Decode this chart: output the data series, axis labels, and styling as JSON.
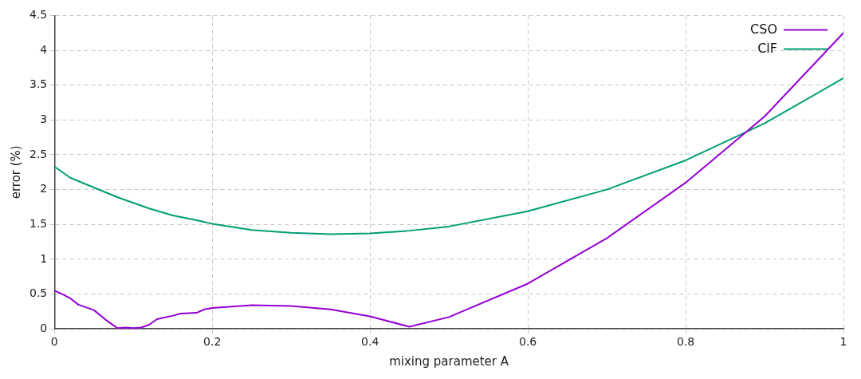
{
  "chart_data": {
    "type": "line",
    "xlabel": "mixing parameter A",
    "ylabel": "error (%)",
    "xlim": [
      0,
      1
    ],
    "xticks": [
      0,
      0.2,
      0.4,
      0.6,
      0.8,
      1
    ],
    "ylim": [
      0,
      4.5
    ],
    "yticks": [
      0,
      0.5,
      1,
      1.5,
      2,
      2.5,
      3,
      3.5,
      4,
      4.5
    ],
    "grid": true,
    "legend": "top right",
    "marker": "none",
    "line_style": "solid",
    "series": [
      {
        "name": "CSO",
        "color": "#9400d3",
        "x": [
          0,
          0.01,
          0.02,
          0.03,
          0.05,
          0.065,
          0.08,
          0.09,
          0.1,
          0.11,
          0.12,
          0.13,
          0.15,
          0.16,
          0.18,
          0.19,
          0.2,
          0.25,
          0.3,
          0.35,
          0.4,
          0.45,
          0.5,
          0.6,
          0.7,
          0.8,
          0.9,
          1
        ],
        "values": [
          0.55,
          0.5,
          0.44,
          0.35,
          0.27,
          0.13,
          0.01,
          0.02,
          0.01,
          0.02,
          0.06,
          0.14,
          0.19,
          0.22,
          0.23,
          0.28,
          0.3,
          0.34,
          0.33,
          0.28,
          0.18,
          0.03,
          0.17,
          0.65,
          1.3,
          2.1,
          3.05,
          4.25
        ]
      },
      {
        "name": "ClF",
        "color": "#009e73",
        "x": [
          0,
          0.02,
          0.05,
          0.08,
          0.1,
          0.12,
          0.15,
          0.18,
          0.2,
          0.25,
          0.3,
          0.35,
          0.4,
          0.45,
          0.5,
          0.6,
          0.7,
          0.8,
          0.9,
          1
        ],
        "values": [
          2.33,
          2.17,
          2.03,
          1.89,
          1.81,
          1.73,
          1.63,
          1.56,
          1.51,
          1.42,
          1.38,
          1.36,
          1.37,
          1.41,
          1.47,
          1.69,
          2.0,
          2.42,
          2.95,
          3.6
        ]
      }
    ]
  }
}
